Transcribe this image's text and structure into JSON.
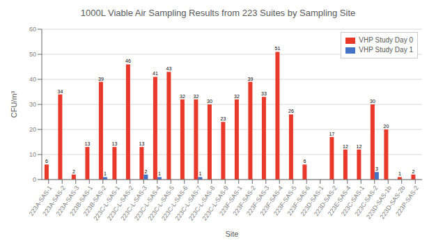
{
  "chart_data": {
    "type": "bar",
    "title": "1000L Viable Air Sampling Results from 223 Suites by Sampling Site",
    "xlabel": "Site",
    "ylabel": "CFU/m³",
    "categories": [
      "223A-SAS-1",
      "223A-SAS-2",
      "223A-SAS-3",
      "223B-SAS-1",
      "223B-SAS-2",
      "223C-L-SAS-1",
      "223C-L-SAS-2",
      "223C-L-SAS-3",
      "223C-L-SAS-4",
      "223C-L-SAS-5",
      "223C-L-SAS-6",
      "223C-L-SAS-7",
      "223C-L-SAS-8",
      "223C-L-SAS-9",
      "223F-SAS-1",
      "223F-SAS-2",
      "223F-SAS-3",
      "223F-SAS-4",
      "223F-SAS-5",
      "223F-SAS-6",
      "223D-SAS-1",
      "223D-SAS-2",
      "223E-SAS-4",
      "223C-SAS-1",
      "223C-SAS-2",
      "223D-SAS-1b",
      "223D-SAS-2b",
      "223P-SAS-2"
    ],
    "series": [
      {
        "name": "VHP Study Day 0",
        "color": "#e8392a",
        "values": [
          6,
          34,
          2,
          13,
          39,
          13,
          46,
          13,
          41,
          43,
          32,
          32,
          30,
          23,
          32,
          39,
          33,
          51,
          26,
          6,
          0,
          17,
          12,
          12,
          30,
          20,
          1,
          2
        ]
      },
      {
        "name": "VHP Study Day 1",
        "color": "#4472c4",
        "values": [
          0,
          0,
          0,
          0,
          1,
          0,
          0,
          2,
          1,
          0,
          0,
          1,
          0,
          0,
          0,
          0,
          0,
          0,
          0,
          0,
          0,
          0,
          0,
          0,
          3,
          0,
          0,
          0
        ]
      }
    ],
    "ylim": [
      0,
      60
    ],
    "yticks": [
      0,
      10,
      20,
      30,
      40,
      50,
      60
    ],
    "grid": true,
    "legend": "upper right",
    "data_labels": true
  }
}
